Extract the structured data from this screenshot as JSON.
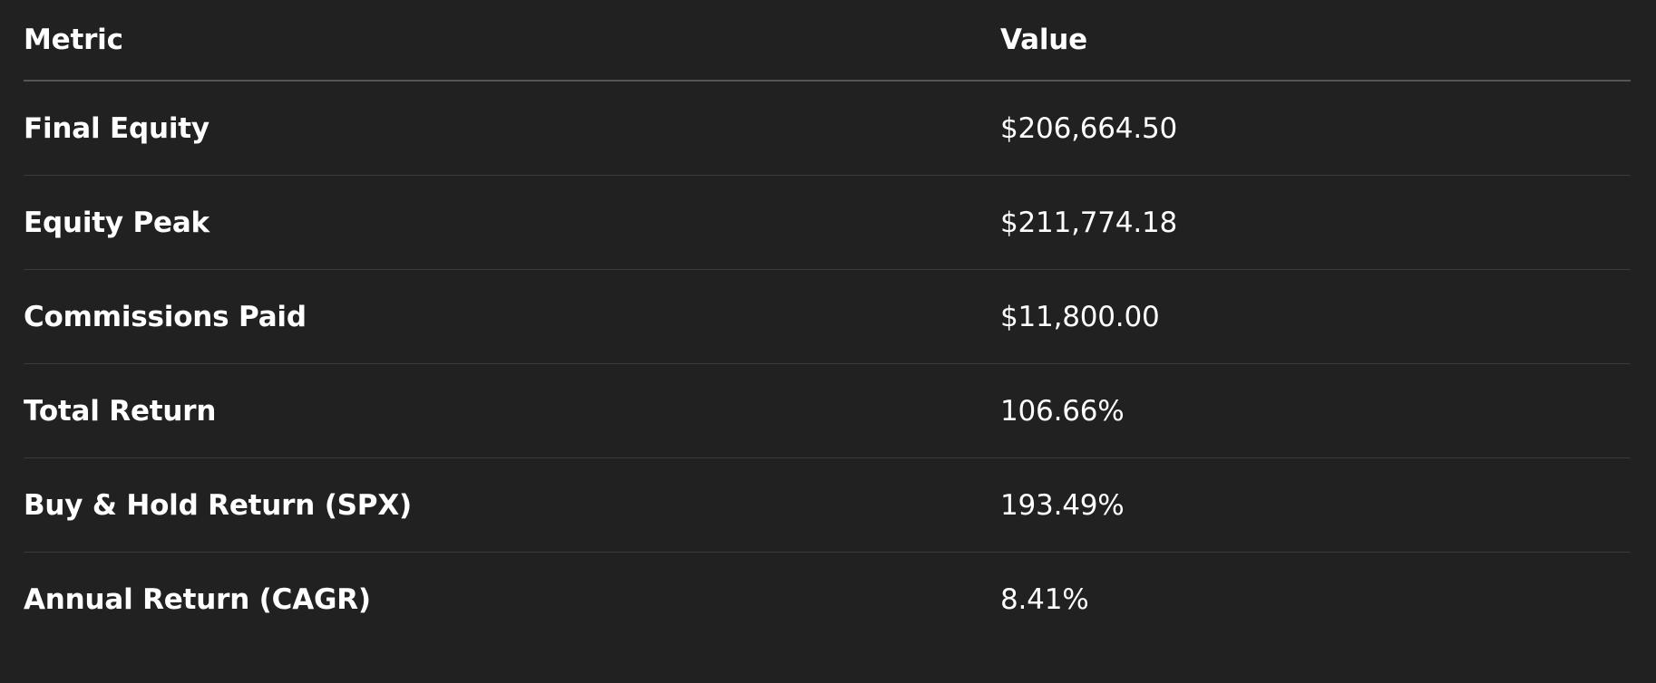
{
  "table": {
    "headers": {
      "metric": "Metric",
      "value": "Value"
    },
    "rows": [
      {
        "metric": "Final Equity",
        "value": "$206,664.50"
      },
      {
        "metric": "Equity Peak",
        "value": "$211,774.18"
      },
      {
        "metric": "Commissions Paid",
        "value": "$11,800.00"
      },
      {
        "metric": "Total Return",
        "value": "106.66%"
      },
      {
        "metric": "Buy & Hold Return (SPX)",
        "value": "193.49%"
      },
      {
        "metric": "Annual Return (CAGR)",
        "value": "8.41%"
      }
    ]
  }
}
